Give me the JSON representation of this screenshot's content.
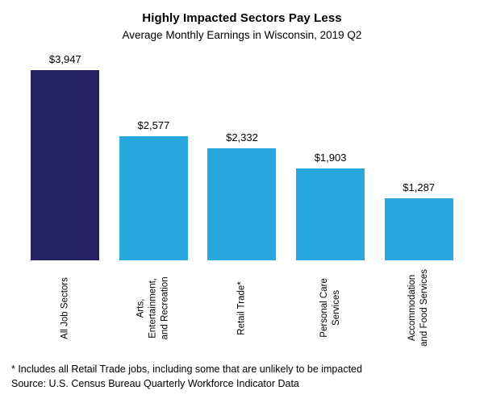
{
  "chart_data": {
    "type": "bar",
    "title": "Highly Impacted Sectors Pay Less",
    "subtitle": "Average Monthly Earnings in Wisconsin, 2019 Q2",
    "categories": [
      "All Job Sectors",
      "Arts, Entertainment, and Recreation",
      "Retail Trade*",
      "Personal Care Services",
      "Accommodation and Food Services"
    ],
    "category_label_lines": [
      [
        "All Job Sectors"
      ],
      [
        "Arts,",
        "Entertainment,",
        "and Recreation"
      ],
      [
        "Retail Trade*"
      ],
      [
        "Personal Care",
        "Services"
      ],
      [
        "Accommodation",
        "and Food Services"
      ]
    ],
    "values": [
      3947,
      2577,
      2332,
      1903,
      1287
    ],
    "value_labels": [
      "$3,947",
      "$2,577",
      "$2,332",
      "$1,903",
      "$1,287"
    ],
    "bar_colors": [
      "#262262",
      "#29a8e0",
      "#29a8e0",
      "#29a8e0",
      "#29a8e0"
    ],
    "xlabel": "",
    "ylabel": "",
    "ylim": [
      0,
      4200
    ],
    "grid": false,
    "legend": "none"
  },
  "colors": {
    "highlight_bar": "#262262",
    "default_bar": "#29a8e0",
    "text": "#000000",
    "background": "#ffffff"
  },
  "footnotes": {
    "note": "* Includes all Retail Trade jobs, including some that are unlikely to be impacted",
    "source": "Source: U.S. Census Bureau Quarterly Workforce Indicator Data"
  }
}
